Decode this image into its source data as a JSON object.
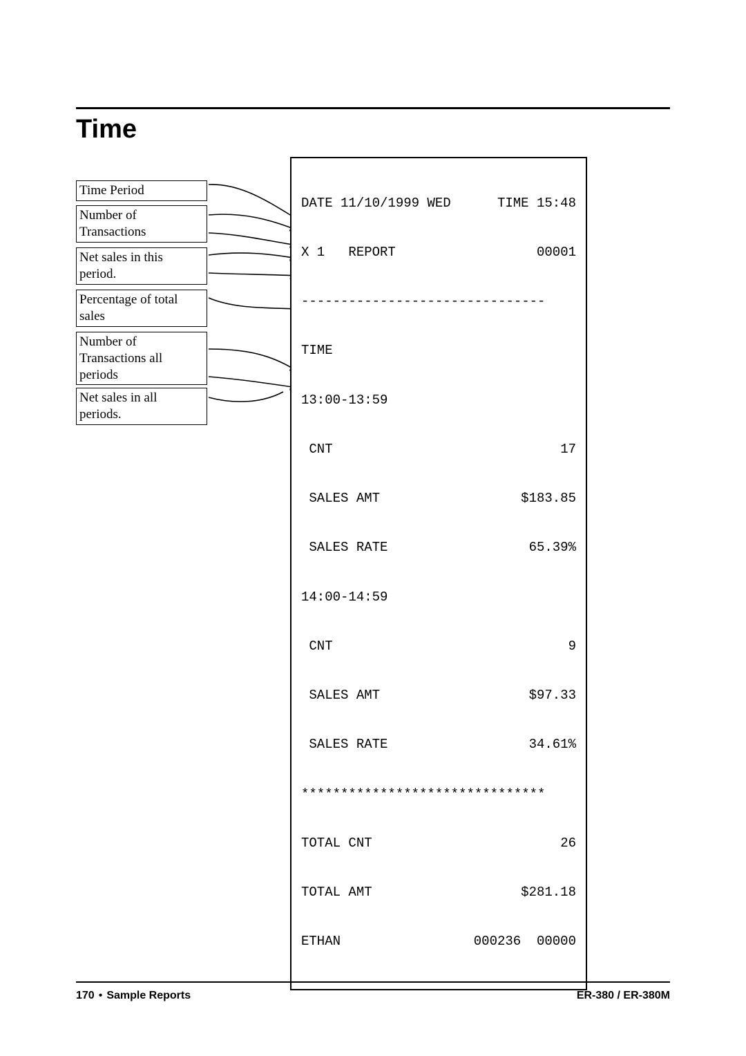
{
  "title": "Time",
  "labels": {
    "box1": "Time Period",
    "box2": "Number of\nTransactions",
    "box3": "Net sales in this\nperiod.",
    "box4": "Percentage of total\nsales",
    "box5": "Number of\nTransactions all\nperiods",
    "box6": "Net sales in all\nperiods."
  },
  "receipt": {
    "line1_l": "DATE 11/10/1999 WED",
    "line1_r": "TIME 15:48",
    "line2_l": "X 1   REPORT",
    "line2_r": "00001",
    "dash": "-------------------------------",
    "line4": "TIME",
    "line5": "13:00-13:59",
    "line6_l": " CNT",
    "line6_r": "17",
    "line7_l": " SALES AMT",
    "line7_r": "$183.85",
    "line8_l": " SALES RATE",
    "line8_r": "65.39%",
    "line9": "14:00-14:59",
    "line10_l": " CNT",
    "line10_r": "9",
    "line11_l": " SALES AMT",
    "line11_r": "$97.33",
    "line12_l": " SALES RATE",
    "line12_r": "34.61%",
    "stars": "*******************************",
    "line14_l": "TOTAL CNT",
    "line14_r": "26",
    "line15_l": "TOTAL AMT",
    "line15_r": "$281.18",
    "line16_l": "ETHAN",
    "line16_r": "000236  00000"
  },
  "footer": {
    "page": "170",
    "section": "Sample Reports",
    "model": "ER-380 / ER-380M"
  },
  "style": {
    "arrow_color": "#000000"
  }
}
